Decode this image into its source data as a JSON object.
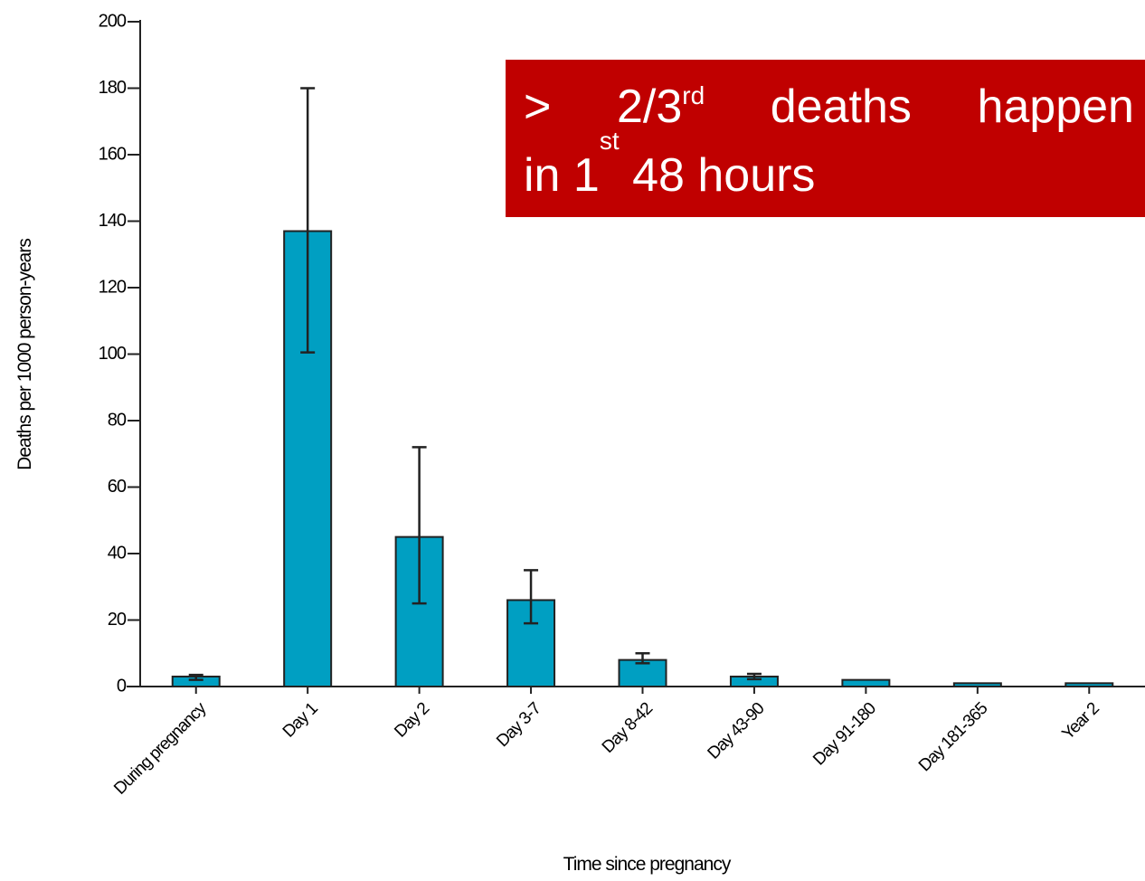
{
  "chart_data": {
    "type": "bar",
    "categories": [
      "During pregnancy",
      "Day 1",
      "Day 2",
      "Day 3-7",
      "Day 8-42",
      "Day 43-90",
      "Day 91-180",
      "Day 181-365",
      "Year 2"
    ],
    "values": [
      3,
      137,
      45,
      26,
      8,
      3,
      2,
      1,
      1
    ],
    "ci_low": [
      2,
      100.5,
      25,
      19,
      7,
      2.2,
      null,
      null,
      null
    ],
    "ci_high": [
      3.5,
      180,
      72,
      35,
      10,
      3.8,
      null,
      null,
      null
    ],
    "color": "#009fc2",
    "ylim": [
      0,
      200
    ],
    "yticks": [
      0,
      20,
      40,
      60,
      80,
      100,
      120,
      140,
      160,
      180,
      200
    ],
    "ylabel": "Deaths per 1000 person-years",
    "xlabel": "Time since pregnancy",
    "annotation": {
      "line1": [
        ">",
        "2/3",
        "rd",
        "deaths",
        "happen"
      ],
      "line2": [
        "in 1",
        "st",
        " 48 hours"
      ]
    }
  }
}
